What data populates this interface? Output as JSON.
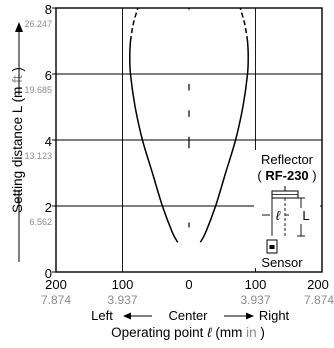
{
  "chart_data": {
    "type": "line",
    "x_axis": {
      "min": -200,
      "max": 200,
      "ticks_mm": [
        "200",
        "100",
        "0",
        "100",
        "200"
      ],
      "ticks_in": [
        "7.874",
        "3.937",
        "3.937",
        "7.874"
      ],
      "direction_left": "Left",
      "direction_center": "Center",
      "direction_right": "Right",
      "label": "Operating point",
      "symbol": "ℓ",
      "unit_open": "(mm",
      "unit_in": "in",
      "unit_close": ")"
    },
    "y_axis": {
      "min": 0,
      "max": 8,
      "ticks_m": [
        "0",
        "2",
        "4",
        "6",
        "8"
      ],
      "ticks_ft": [
        "6.562",
        "13.123",
        "19.685",
        "26.247"
      ],
      "label": "Setting distance L",
      "unit_open": "(m",
      "unit_ft": "ft",
      "unit_close": ")"
    },
    "grid": true,
    "series": [
      {
        "side": "right",
        "solid": [
          [
            17,
            0.9
          ],
          [
            25,
            1.2
          ],
          [
            40,
            2.0
          ],
          [
            55,
            3.0
          ],
          [
            70,
            4.0
          ],
          [
            81,
            5.0
          ],
          [
            88,
            6.0
          ],
          [
            89,
            6.6
          ],
          [
            88,
            7.0
          ]
        ],
        "dashed": [
          [
            88,
            7.0
          ],
          [
            84,
            7.5
          ],
          [
            77,
            8.0
          ]
        ]
      },
      {
        "side": "left",
        "solid": [
          [
            -17,
            0.9
          ],
          [
            -25,
            1.2
          ],
          [
            -40,
            2.0
          ],
          [
            -55,
            3.0
          ],
          [
            -70,
            4.0
          ],
          [
            -81,
            5.0
          ],
          [
            -88,
            6.0
          ],
          [
            -89,
            6.6
          ],
          [
            -88,
            7.0
          ]
        ],
        "dashed": [
          [
            -88,
            7.0
          ],
          [
            -84,
            7.5
          ],
          [
            -77,
            8.0
          ]
        ]
      }
    ],
    "center_dashes": [
      [
        1.35,
        1.5
      ],
      [
        3.75,
        4.1
      ],
      [
        4.7,
        4.9
      ],
      [
        5.5,
        5.7
      ],
      [
        7.95,
        8.0
      ]
    ],
    "inset": {
      "reflector_label": "Reflector",
      "model_open": "(",
      "model": "RF-230",
      "model_close": ")",
      "ell": "ℓ",
      "L": "L",
      "sensor_label": "Sensor"
    }
  }
}
